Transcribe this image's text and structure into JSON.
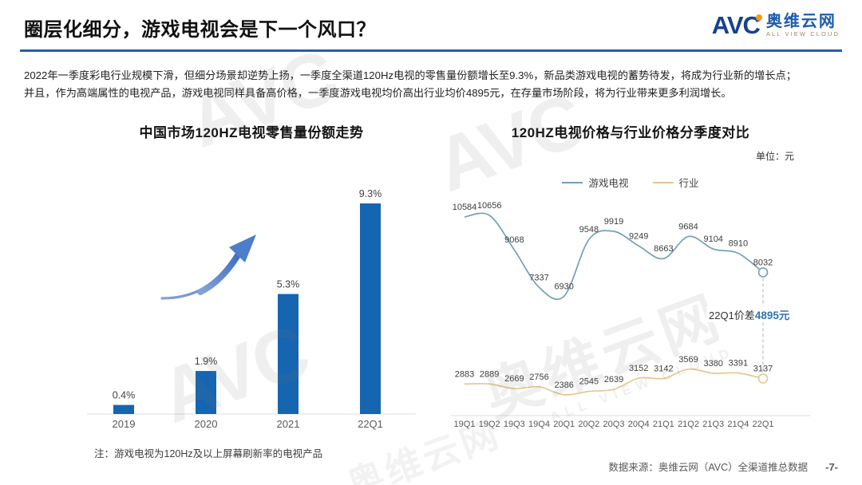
{
  "page": {
    "title": "圈层化细分，游戏电视会是下一个风口？",
    "intro_line1": "2022年一季度彩电行业规模下滑，但细分场景却逆势上扬，一季度全渠道120Hz电视的零售量份额增长至9.3%，新品类游戏电视的蓄势待发，将成为行业新的增长点；",
    "intro_line2": "并且，作为高端属性的电视产品，游戏电视同样具备高价格，一季度游戏电视均价高出行业均价4895元，在存量市场阶段，将为行业带来更多利润增长。",
    "footer_source": "数据来源：奥维云网（AVC）全渠道推总数据",
    "page_number": "-7-"
  },
  "logo": {
    "acronym": "AVC",
    "name": "奥维云网",
    "tagline": "ALL VIEW CLOUD"
  },
  "watermark": {
    "acronym": "AVC",
    "name": "奥维云网",
    "tagline": "ALL VIEW CLOUD"
  },
  "colors": {
    "divider_blue": "#275fa6",
    "bar_blue": "#1565b0",
    "arrow_blue": "#4d7ec9",
    "game_tv_line": "#72a0b5",
    "industry_line": "#e5c78e",
    "annotation_blue": "#2e75b6",
    "logo_navy": "#17418f",
    "logo_orange": "#f39a1e"
  },
  "chart_data": [
    {
      "type": "bar",
      "title": "中国市场120HZ电视零售量份额走势",
      "categories": [
        "2019",
        "2020",
        "2021",
        "22Q1"
      ],
      "values": [
        0.4,
        1.9,
        5.3,
        9.3
      ],
      "labels": [
        "0.4%",
        "1.9%",
        "5.3%",
        "9.3%"
      ],
      "bar_color": "#1565b0",
      "ylim": [
        0,
        10
      ],
      "note": "注：游戏电视为120Hz及以上屏幕刷新率的电视产品",
      "annotation_icon": "upward-trend-arrow"
    },
    {
      "type": "line",
      "title": "120HZ电视价格与行业价格分季度对比",
      "unit_label": "单位：元",
      "categories": [
        "19Q1",
        "19Q2",
        "19Q3",
        "19Q4",
        "20Q1",
        "20Q2",
        "20Q3",
        "20Q4",
        "21Q1",
        "21Q2",
        "21Q3",
        "21Q4",
        "22Q1"
      ],
      "series": [
        {
          "name": "游戏电视",
          "color": "#72a0b5",
          "values": [
            10584,
            10656,
            9068,
            7337,
            6930,
            9548,
            9919,
            9249,
            8663,
            9684,
            9104,
            8910,
            8032
          ]
        },
        {
          "name": "行业",
          "color": "#e5c78e",
          "values": [
            2883,
            2889,
            2669,
            2756,
            2386,
            2545,
            2639,
            3152,
            3142,
            3569,
            3380,
            3391,
            3137
          ]
        }
      ],
      "annotation": {
        "prefix": "22Q1价差",
        "value": "4895元"
      },
      "ylim": [
        2000,
        11000
      ],
      "legend_position": "top",
      "grid": false
    }
  ]
}
